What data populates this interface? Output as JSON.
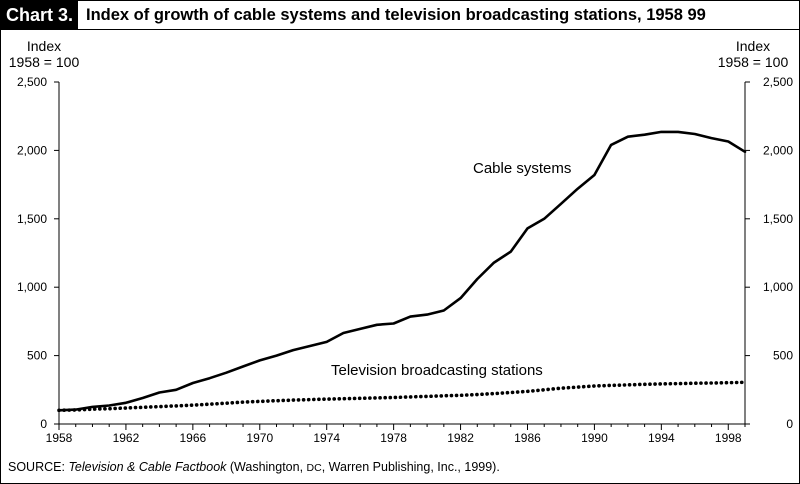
{
  "header": {
    "chart_label": "Chart 3.",
    "title": "Index of growth of cable systems and television broadcasting stations, 1958  99"
  },
  "axes": {
    "left_label_line1": "Index",
    "left_label_line2": "1958 = 100",
    "right_label_line1": "Index",
    "right_label_line2": "1958 = 100"
  },
  "annotations": {
    "cable": "Cable systems",
    "tv": "Television broadcasting stations"
  },
  "source": {
    "prefix": "SOURCE: ",
    "title": "Television & Cable Factbook",
    "rest_1": " (Washington, ",
    "dc": "DC",
    "rest_2": ", Warren Publishing, Inc., 1999)."
  },
  "colors": {
    "line": "#000000",
    "background": "#ffffff"
  },
  "chart_data": {
    "type": "line",
    "title": "Index of growth of cable systems and television broadcasting stations, 1958  99",
    "xlim": [
      1958,
      1999
    ],
    "ylim": [
      0,
      2500
    ],
    "x_ticks": [
      1958,
      1962,
      1966,
      1970,
      1974,
      1978,
      1982,
      1986,
      1990,
      1994,
      1998
    ],
    "y_ticks": [
      0,
      500,
      1000,
      1500,
      2000,
      2500
    ],
    "y_tick_labels": [
      "0",
      "500",
      "1,000",
      "1,500",
      "2,000",
      "2,500"
    ],
    "y_ticks_on_both_sides": true,
    "grid": false,
    "series": [
      {
        "name": "Cable systems",
        "style": "solid",
        "x": [
          1958,
          1959,
          1960,
          1961,
          1962,
          1963,
          1964,
          1965,
          1966,
          1967,
          1968,
          1969,
          1970,
          1971,
          1972,
          1973,
          1974,
          1975,
          1976,
          1977,
          1978,
          1979,
          1980,
          1981,
          1982,
          1983,
          1984,
          1985,
          1986,
          1987,
          1988,
          1989,
          1990,
          1991,
          1992,
          1993,
          1994,
          1995,
          1996,
          1997,
          1998,
          1999
        ],
        "values": [
          100,
          105,
          125,
          135,
          155,
          190,
          230,
          250,
          300,
          335,
          375,
          420,
          465,
          500,
          540,
          570,
          600,
          665,
          695,
          725,
          735,
          785,
          800,
          830,
          920,
          1060,
          1180,
          1260,
          1430,
          1500,
          1610,
          1720,
          1820,
          2040,
          2100,
          2115,
          2135,
          2135,
          2120,
          2090,
          2065,
          1990
        ]
      },
      {
        "name": "Television broadcasting stations",
        "style": "dotted",
        "x": [
          1958,
          1959,
          1960,
          1961,
          1962,
          1963,
          1964,
          1965,
          1966,
          1967,
          1968,
          1969,
          1970,
          1971,
          1972,
          1973,
          1974,
          1975,
          1976,
          1977,
          1978,
          1979,
          1980,
          1981,
          1982,
          1983,
          1984,
          1985,
          1986,
          1987,
          1988,
          1989,
          1990,
          1991,
          1992,
          1993,
          1994,
          1995,
          1996,
          1997,
          1998,
          1999
        ],
        "values": [
          100,
          102,
          108,
          112,
          117,
          122,
          127,
          132,
          138,
          145,
          152,
          160,
          165,
          170,
          175,
          178,
          182,
          185,
          188,
          191,
          194,
          198,
          202,
          206,
          210,
          216,
          222,
          230,
          238,
          250,
          262,
          270,
          278,
          282,
          286,
          290,
          293,
          295,
          298,
          300,
          302,
          305
        ]
      }
    ]
  }
}
